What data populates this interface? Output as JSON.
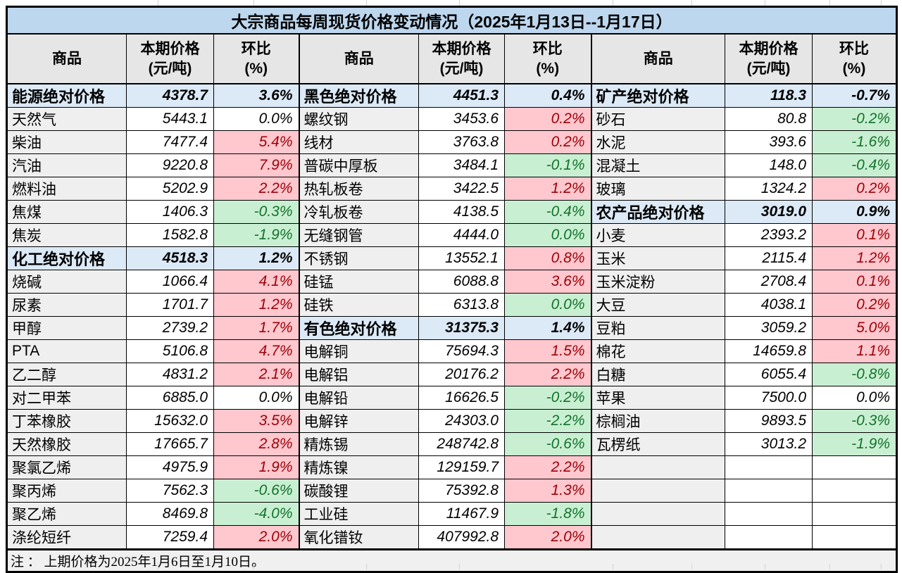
{
  "title": "大宗商品每周现货价格变动情况（2025年1月13日--1月17日）",
  "header": {
    "commodity": "商品",
    "price": "本期价格",
    "price_unit": "(元/吨)",
    "pct": "环比",
    "pct_unit": "(%)"
  },
  "note": "注 ： 上期价格为2025年1月6日至1月10日。",
  "colors": {
    "title_bg": "#BDD7EE",
    "section_bg": "#DCE9F6",
    "up_bg": "#FFC7CE",
    "up_text": "#9C0006",
    "down_bg": "#C9EFD2",
    "down_text": "#13722B",
    "name_col_bg": "#EFEFEF",
    "header_bg": "#E7E6E6"
  },
  "groups": [
    {
      "rows": [
        {
          "name": "能源绝对价格",
          "price": "4378.7",
          "pct": "3.6%",
          "trend": "section"
        },
        {
          "name": "天然气",
          "price": "5443.1",
          "pct": "0.0%",
          "trend": "flat"
        },
        {
          "name": "柴油",
          "price": "7477.4",
          "pct": "5.4%",
          "trend": "up"
        },
        {
          "name": "汽油",
          "price": "9220.8",
          "pct": "7.9%",
          "trend": "up"
        },
        {
          "name": "燃料油",
          "price": "5202.9",
          "pct": "2.2%",
          "trend": "up"
        },
        {
          "name": "焦煤",
          "price": "1406.3",
          "pct": "-0.3%",
          "trend": "down"
        },
        {
          "name": "焦炭",
          "price": "1582.8",
          "pct": "-1.9%",
          "trend": "down"
        },
        {
          "name": "化工绝对价格",
          "price": "4518.3",
          "pct": "1.2%",
          "trend": "section"
        },
        {
          "name": "烧碱",
          "price": "1066.4",
          "pct": "4.1%",
          "trend": "up"
        },
        {
          "name": "尿素",
          "price": "1701.7",
          "pct": "1.2%",
          "trend": "up"
        },
        {
          "name": "甲醇",
          "price": "2739.2",
          "pct": "1.7%",
          "trend": "up"
        },
        {
          "name": "PTA",
          "price": "5106.8",
          "pct": "4.7%",
          "trend": "up"
        },
        {
          "name": "乙二醇",
          "price": "4831.2",
          "pct": "2.1%",
          "trend": "up"
        },
        {
          "name": "对二甲苯",
          "price": "6885.0",
          "pct": "0.0%",
          "trend": "flat"
        },
        {
          "name": "丁苯橡胶",
          "price": "15632.0",
          "pct": "3.5%",
          "trend": "up"
        },
        {
          "name": "天然橡胶",
          "price": "17665.7",
          "pct": "2.8%",
          "trend": "up"
        },
        {
          "name": "聚氯乙烯",
          "price": "4975.9",
          "pct": "1.9%",
          "trend": "up"
        },
        {
          "name": "聚丙烯",
          "price": "7562.3",
          "pct": "-0.6%",
          "trend": "down"
        },
        {
          "name": "聚乙烯",
          "price": "8469.8",
          "pct": "-4.0%",
          "trend": "down"
        },
        {
          "name": "涤纶短纤",
          "price": "7259.4",
          "pct": "2.0%",
          "trend": "up"
        }
      ]
    },
    {
      "rows": [
        {
          "name": "黑色绝对价格",
          "price": "4451.3",
          "pct": "0.4%",
          "trend": "section"
        },
        {
          "name": "螺纹钢",
          "price": "3453.6",
          "pct": "0.2%",
          "trend": "up"
        },
        {
          "name": "线材",
          "price": "3763.8",
          "pct": "0.2%",
          "trend": "up"
        },
        {
          "name": "普碳中厚板",
          "price": "3484.1",
          "pct": "-0.1%",
          "trend": "down"
        },
        {
          "name": "热轧板卷",
          "price": "3422.5",
          "pct": "1.2%",
          "trend": "up"
        },
        {
          "name": "冷轧板卷",
          "price": "4138.5",
          "pct": "-0.4%",
          "trend": "down"
        },
        {
          "name": "无缝钢管",
          "price": "4444.0",
          "pct": "0.0%",
          "trend": "down"
        },
        {
          "name": "不锈钢",
          "price": "13552.1",
          "pct": "0.8%",
          "trend": "up"
        },
        {
          "name": "硅锰",
          "price": "6088.8",
          "pct": "3.6%",
          "trend": "up"
        },
        {
          "name": "硅铁",
          "price": "6313.8",
          "pct": "0.0%",
          "trend": "down"
        },
        {
          "name": "有色绝对价格",
          "price": "31375.3",
          "pct": "1.4%",
          "trend": "section"
        },
        {
          "name": "电解铜",
          "price": "75694.3",
          "pct": "1.5%",
          "trend": "up"
        },
        {
          "name": "电解铝",
          "price": "20176.2",
          "pct": "2.2%",
          "trend": "up"
        },
        {
          "name": "电解铅",
          "price": "16626.5",
          "pct": "-0.2%",
          "trend": "down"
        },
        {
          "name": "电解锌",
          "price": "24303.0",
          "pct": "-2.2%",
          "trend": "down"
        },
        {
          "name": "精炼锡",
          "price": "248742.8",
          "pct": "-0.6%",
          "trend": "down"
        },
        {
          "name": "精炼镍",
          "price": "129159.7",
          "pct": "2.2%",
          "trend": "up"
        },
        {
          "name": "碳酸锂",
          "price": "75392.8",
          "pct": "1.3%",
          "trend": "up"
        },
        {
          "name": "工业硅",
          "price": "11467.9",
          "pct": "-1.8%",
          "trend": "down"
        },
        {
          "name": "氧化镨钕",
          "price": "407992.8",
          "pct": "2.0%",
          "trend": "up"
        }
      ]
    },
    {
      "rows": [
        {
          "name": "矿产绝对价格",
          "price": "118.3",
          "pct": "-0.7%",
          "trend": "section"
        },
        {
          "name": "砂石",
          "price": "80.8",
          "pct": "-0.2%",
          "trend": "down"
        },
        {
          "name": "水泥",
          "price": "393.6",
          "pct": "-1.6%",
          "trend": "down"
        },
        {
          "name": "混凝土",
          "price": "148.0",
          "pct": "-0.4%",
          "trend": "down"
        },
        {
          "name": "玻璃",
          "price": "1324.2",
          "pct": "0.2%",
          "trend": "up"
        },
        {
          "name": "农产品绝对价格",
          "price": "3019.0",
          "pct": "0.9%",
          "trend": "section"
        },
        {
          "name": "小麦",
          "price": "2393.2",
          "pct": "0.1%",
          "trend": "up"
        },
        {
          "name": "玉米",
          "price": "2115.4",
          "pct": "1.2%",
          "trend": "up"
        },
        {
          "name": "玉米淀粉",
          "price": "2708.4",
          "pct": "0.1%",
          "trend": "up"
        },
        {
          "name": "大豆",
          "price": "4038.1",
          "pct": "0.2%",
          "trend": "up"
        },
        {
          "name": "豆粕",
          "price": "3059.2",
          "pct": "5.0%",
          "trend": "up"
        },
        {
          "name": "棉花",
          "price": "14659.8",
          "pct": "1.1%",
          "trend": "up"
        },
        {
          "name": "白糖",
          "price": "6055.4",
          "pct": "-0.8%",
          "trend": "down"
        },
        {
          "name": "苹果",
          "price": "7500.0",
          "pct": "0.0%",
          "trend": "flat"
        },
        {
          "name": "棕榈油",
          "price": "9893.5",
          "pct": "-0.3%",
          "trend": "down"
        },
        {
          "name": "瓦楞纸",
          "price": "3013.2",
          "pct": "-1.9%",
          "trend": "down"
        },
        {
          "name": "",
          "price": "",
          "pct": "",
          "trend": "empty"
        },
        {
          "name": "",
          "price": "",
          "pct": "",
          "trend": "empty"
        },
        {
          "name": "",
          "price": "",
          "pct": "",
          "trend": "empty"
        },
        {
          "name": "",
          "price": "",
          "pct": "",
          "trend": "empty"
        }
      ]
    }
  ],
  "margin_gridline_x": [
    224,
    360,
    520,
    652,
    870,
    982,
    1086,
    1178,
    1251
  ]
}
